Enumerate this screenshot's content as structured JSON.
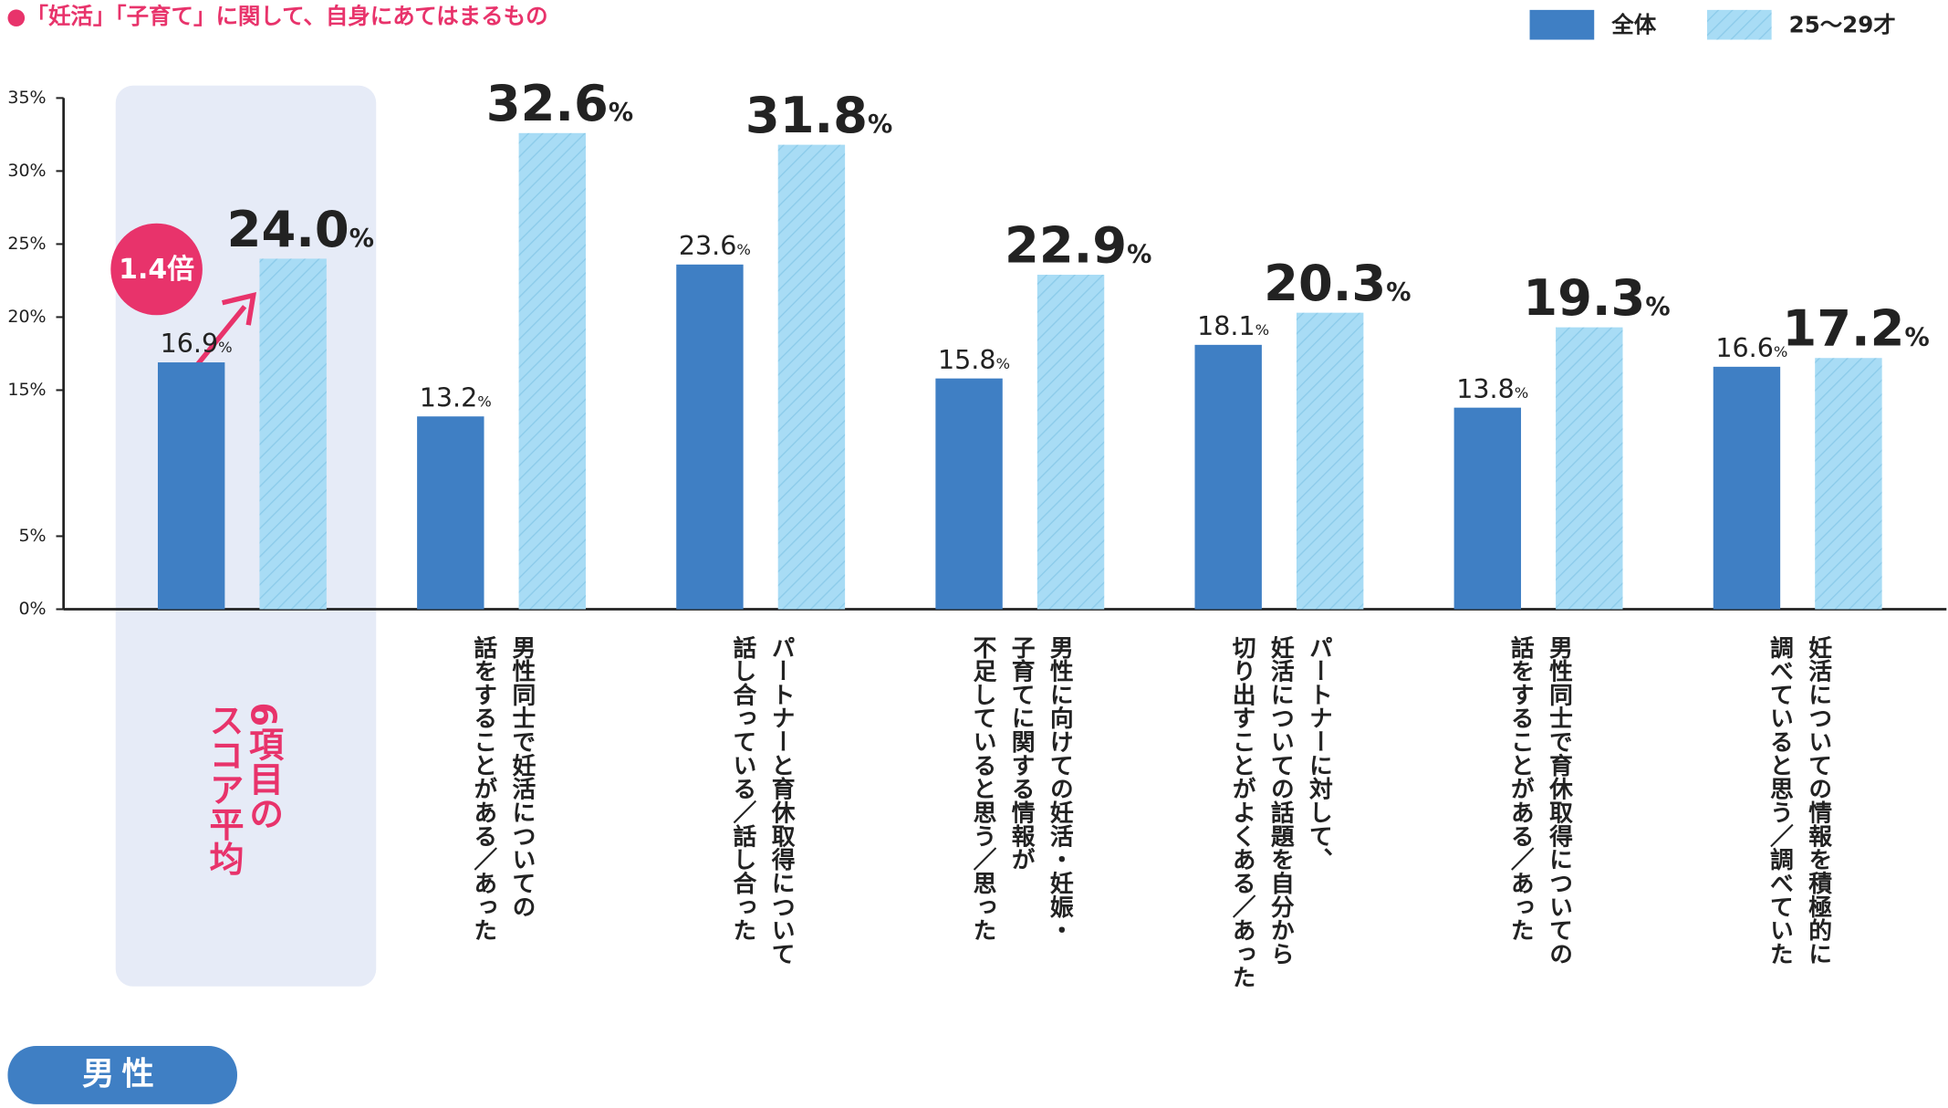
{
  "chart_data": {
    "type": "bar",
    "title": "●「妊活」「子育て」に関して、自身にあてはまるもの",
    "categories": [
      [
        "6項目の",
        "スコア平均"
      ],
      [
        "男性同士で妊活についての",
        "話をすることがある／あった"
      ],
      [
        "パートナーと育休取得について",
        "話し合っている／話し合った"
      ],
      [
        "男性に向けての妊活・妊娠・",
        "子育てに関する情報が",
        "不足していると思う／思った"
      ],
      [
        "パートナーに対して、",
        "妊活についての話題を自分から",
        "切り出すことがよくある／あった"
      ],
      [
        "男性同士で育休取得についての",
        "話をすることがある／あった"
      ],
      [
        "妊活についての情報を積極的に",
        "調べていると思う／調べていた"
      ]
    ],
    "series": [
      {
        "name": "全体",
        "color": "#3f7fc4",
        "values": [
          16.9,
          13.2,
          23.6,
          15.8,
          18.1,
          13.8,
          16.6
        ],
        "value_labels": [
          "16.9%",
          "13.2%",
          "23.6%",
          "15.8%",
          "18.1%",
          "13.8%",
          "16.6%"
        ]
      },
      {
        "name": "25〜29才",
        "color": "#a8dcf5",
        "values": [
          24.0,
          32.6,
          31.8,
          22.9,
          20.3,
          19.3,
          17.2
        ],
        "value_labels": [
          "24.0%",
          "32.6%",
          "31.8%",
          "22.9%",
          "20.3%",
          "19.3%",
          "17.2%"
        ]
      }
    ],
    "ylim": [
      0,
      35
    ],
    "yticks": [
      {
        "value": 0,
        "label": "0%"
      },
      {
        "value": 5,
        "label": "5%"
      },
      {
        "value": 15,
        "label": "15%"
      },
      {
        "value": 20,
        "label": "20%"
      },
      {
        "value": 25,
        "label": "25%"
      },
      {
        "value": 30,
        "label": "30%"
      },
      {
        "value": 35,
        "label": "35%"
      }
    ],
    "grid": false,
    "annotation": "1.4倍",
    "group_label": "男性"
  }
}
